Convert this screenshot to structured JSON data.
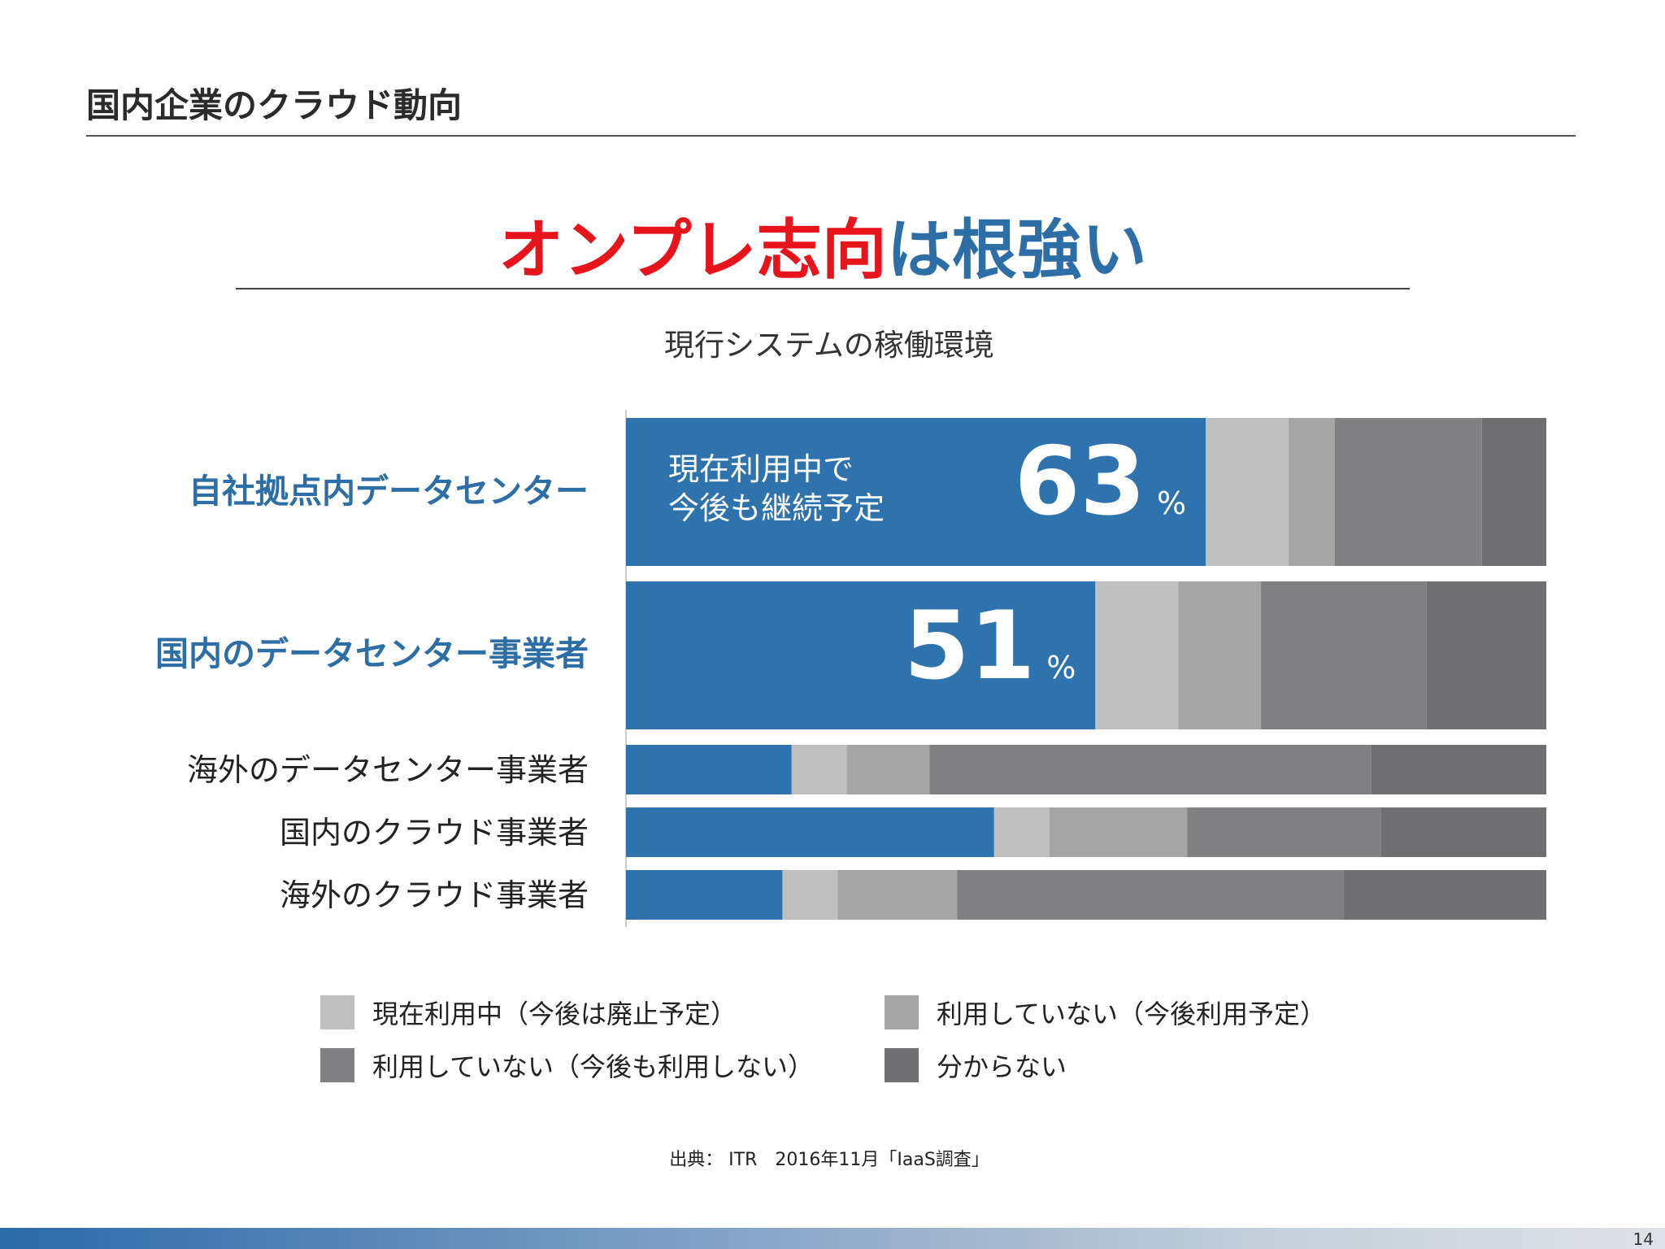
{
  "slide_title": "国内企業のクラウド動向",
  "headline": {
    "red_part": "オンプレ志向",
    "blue_part": "は根強い"
  },
  "source": "出典： ITR　2016年11月「IaaS調査」",
  "page_number": "14",
  "colors": {
    "blue": "#2e73ad",
    "seg1": "#bfbfc0",
    "seg2": "#a6a5a6",
    "seg3": "#807f82",
    "seg4": "#6f6e71",
    "label_blue": "#2e6ea6",
    "headline_red": "#e8141c"
  },
  "chart_data": {
    "type": "bar",
    "orientation": "horizontal",
    "stacked": true,
    "title": "現行システムの稼働環境",
    "xlim": [
      0,
      100
    ],
    "unit": "%",
    "categories": [
      "自社拠点内データセンター",
      "国内のデータセンター事業者",
      "海外のデータセンター事業者",
      "国内のクラウド事業者",
      "海外のクラウド事業者"
    ],
    "series": [
      {
        "name": "現在利用中で今後も継続予定",
        "values": [
          63,
          51,
          18,
          40,
          17
        ]
      },
      {
        "name": "現在利用中（今後は廃止予定）",
        "values": [
          9,
          9,
          6,
          6,
          6
        ]
      },
      {
        "name": "利用していない（今後利用予定）",
        "values": [
          5,
          9,
          9,
          15,
          13
        ]
      },
      {
        "name": "利用していない（今後も利用しない）",
        "values": [
          16,
          18,
          48,
          21,
          42
        ]
      },
      {
        "name": "分からない",
        "values": [
          7,
          13,
          19,
          18,
          22
        ]
      }
    ],
    "highlight_labels": [
      {
        "text": "現在利用中で",
        "text2": "今後も継続予定",
        "value": "63",
        "unit": "%"
      },
      {
        "value": "51",
        "unit": "%"
      }
    ],
    "legend": [
      {
        "label": "現在利用中（今後は廃止予定）",
        "color": "#bfbfc0"
      },
      {
        "label": "利用していない（今後利用予定）",
        "color": "#a6a5a6"
      },
      {
        "label": "利用していない（今後も利用しない）",
        "color": "#807f82"
      },
      {
        "label": "分からない",
        "color": "#6f6e71"
      }
    ]
  }
}
